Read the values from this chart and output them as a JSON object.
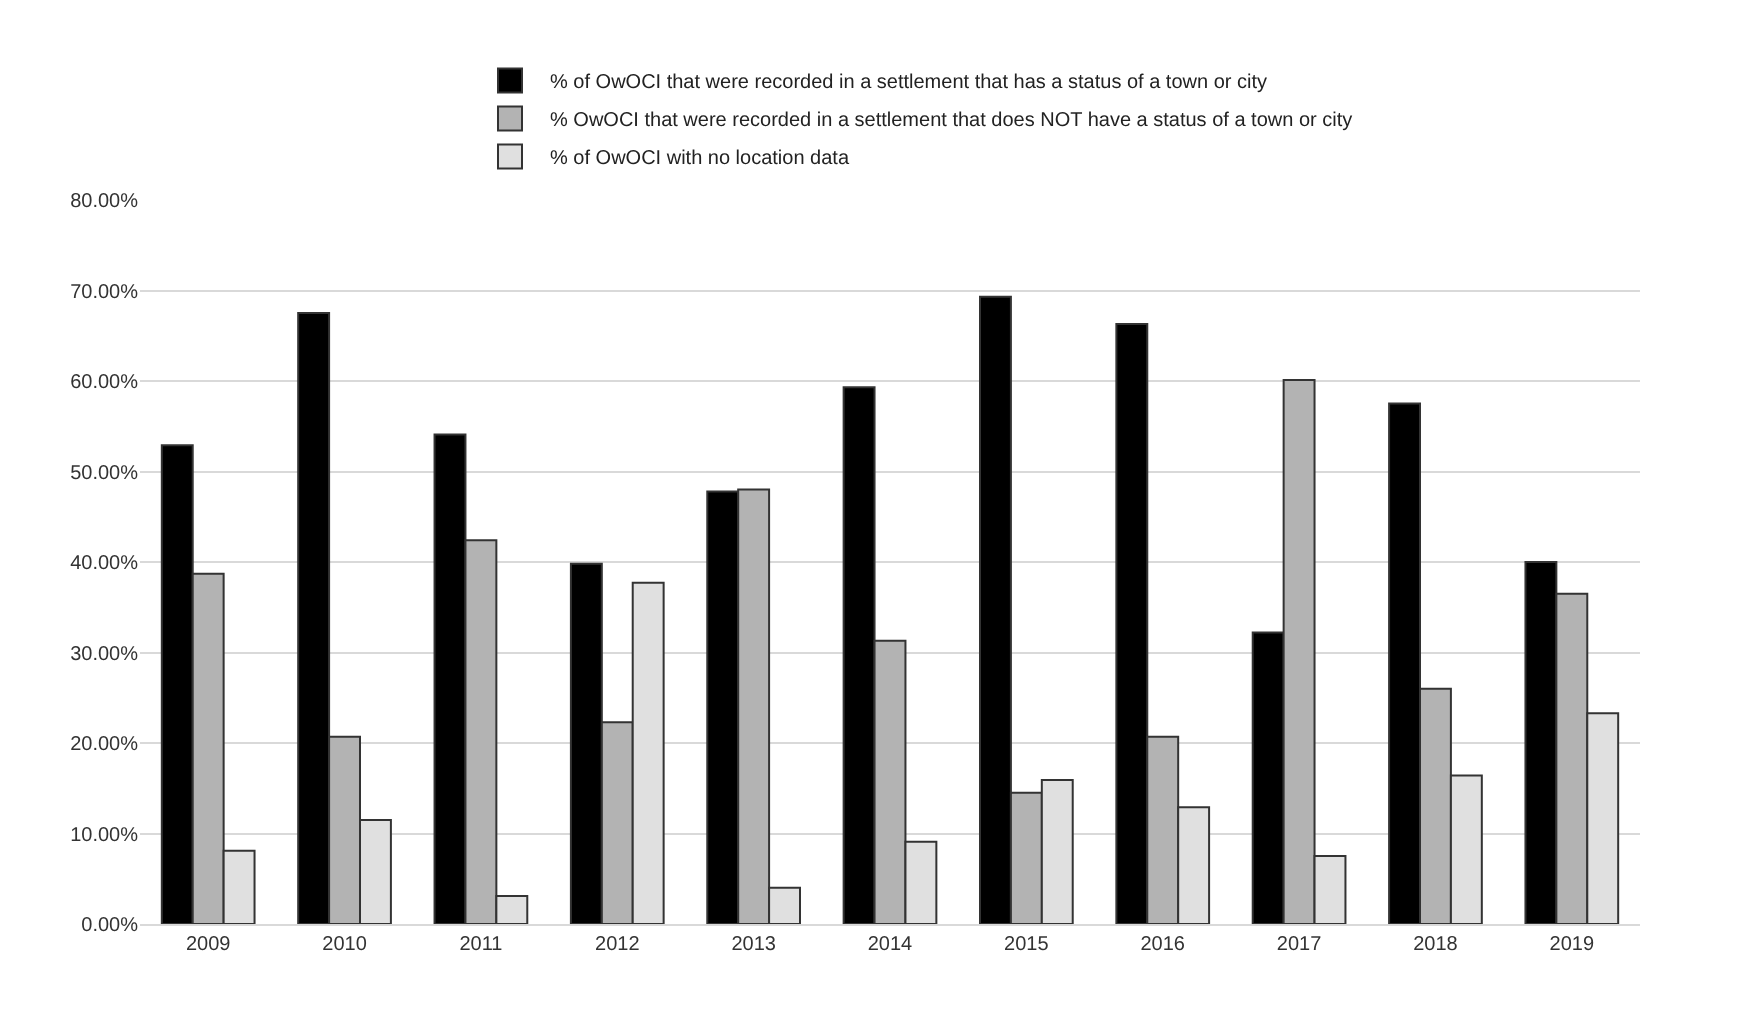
{
  "chart_data": {
    "type": "bar",
    "categories": [
      "2009",
      "2010",
      "2011",
      "2012",
      "2013",
      "2014",
      "2015",
      "2016",
      "2017",
      "2018",
      "2019"
    ],
    "series": [
      {
        "name": "% of OwOCI that were recorded in a settlement that has a status of a town or city",
        "color": "#000000",
        "values": [
          52.9,
          67.5,
          54.1,
          39.8,
          47.8,
          59.3,
          69.3,
          66.3,
          32.2,
          57.5,
          40.0
        ]
      },
      {
        "name": "% OwOCI that were recorded in a settlement that does NOT have a status of a town or city",
        "color": "#b3b3b3",
        "values": [
          38.7,
          20.7,
          42.4,
          22.3,
          48.0,
          31.3,
          14.5,
          20.7,
          60.1,
          26.0,
          36.5
        ]
      },
      {
        "name": "% of OwOCI with no location data",
        "color": "#e0e0e0",
        "values": [
          8.1,
          11.5,
          3.1,
          37.7,
          4.0,
          9.1,
          15.9,
          12.9,
          7.5,
          16.4,
          23.3
        ]
      }
    ],
    "ylim": [
      0,
      80
    ],
    "yticks": [
      {
        "value": 0,
        "label": "0.00%"
      },
      {
        "value": 10,
        "label": "10.00%"
      },
      {
        "value": 20,
        "label": "20.00%"
      },
      {
        "value": 30,
        "label": "30.00%"
      },
      {
        "value": 40,
        "label": "40.00%"
      },
      {
        "value": 50,
        "label": "50.00%"
      },
      {
        "value": 60,
        "label": "60.00%"
      },
      {
        "value": 70,
        "label": "70.00%"
      },
      {
        "value": 80,
        "label": "80.00%"
      }
    ],
    "grid": "y",
    "legend": "top"
  }
}
